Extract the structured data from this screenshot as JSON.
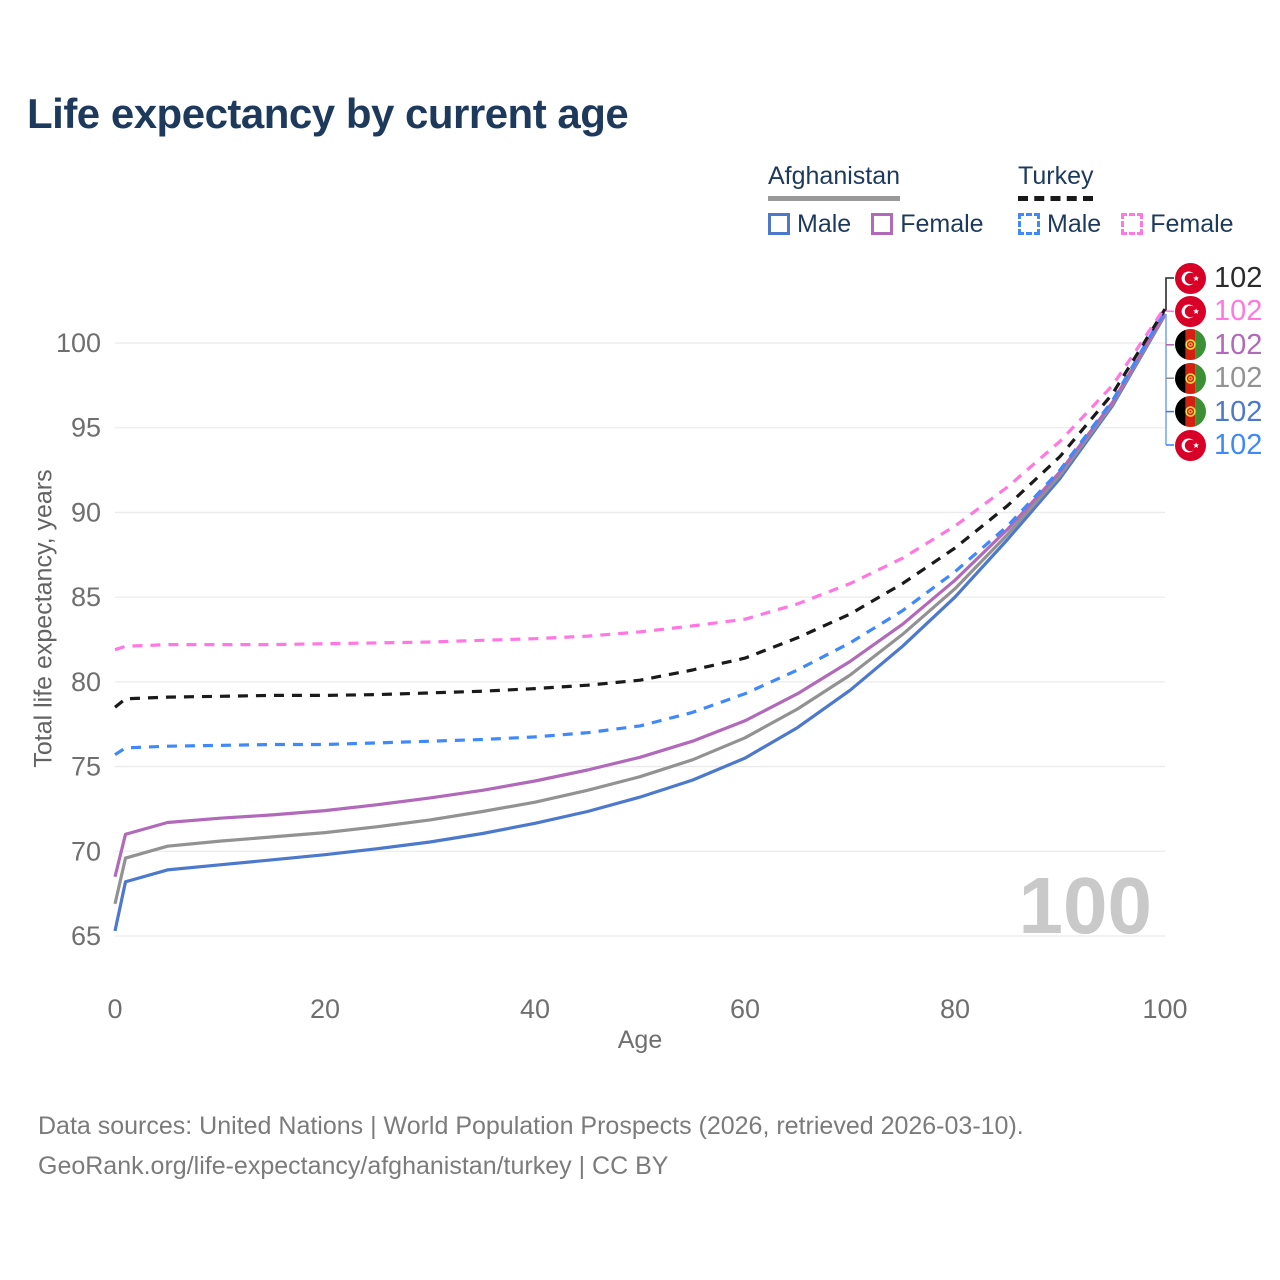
{
  "title": "Life expectancy by current age",
  "legend": {
    "groups": [
      {
        "label": "Afghanistan",
        "underline_color": "#999999",
        "underline_style": "solid",
        "items": [
          {
            "label": "Male",
            "color": "#4d79cc",
            "dash": false
          },
          {
            "label": "Female",
            "color": "#b169ba",
            "dash": false
          }
        ]
      },
      {
        "label": "Turkey",
        "underline_color": "#1a1a1a",
        "underline_style": "dashed",
        "items": [
          {
            "label": "Male",
            "color": "#4089fa",
            "dash": true
          },
          {
            "label": "Female",
            "color": "#ff78e2",
            "dash": true
          }
        ]
      }
    ]
  },
  "axes": {
    "x_label": "Age",
    "y_label": "Total life expectancy, years",
    "x_ticks": [
      0,
      20,
      40,
      60,
      80,
      100
    ],
    "y_ticks": [
      65,
      70,
      75,
      80,
      85,
      90,
      95,
      100
    ],
    "tick_color": "#6f6f6f",
    "grid_color": "#ebebeb"
  },
  "watermark": "100",
  "chart_data": {
    "type": "line",
    "title": "Life expectancy by current age",
    "xlabel": "Age",
    "ylabel": "Total life expectancy, years",
    "xlim": [
      0,
      100
    ],
    "ylim": [
      63.5,
      103
    ],
    "grid": true,
    "x": [
      0,
      1,
      5,
      10,
      15,
      20,
      25,
      30,
      35,
      40,
      45,
      50,
      55,
      60,
      65,
      70,
      75,
      80,
      85,
      90,
      95,
      100
    ],
    "series": [
      {
        "name": "Afghanistan Male",
        "country": "Afghanistan",
        "sex": "Male",
        "color": "#4d79cc",
        "dash": false,
        "values": [
          65.3,
          68.2,
          68.9,
          69.2,
          69.5,
          69.8,
          70.15,
          70.55,
          71.05,
          71.65,
          72.35,
          73.2,
          74.2,
          75.5,
          77.3,
          79.5,
          82.1,
          85.0,
          88.4,
          92.0,
          96.3,
          101.65
        ]
      },
      {
        "name": "Afghanistan Both sexes",
        "country": "Afghanistan",
        "sex": "Both",
        "color": "#929292",
        "dash": false,
        "values": [
          66.9,
          69.6,
          70.3,
          70.6,
          70.85,
          71.1,
          71.45,
          71.85,
          72.35,
          72.9,
          73.6,
          74.4,
          75.4,
          76.7,
          78.4,
          80.4,
          82.8,
          85.5,
          88.7,
          92.2,
          96.4,
          101.7
        ]
      },
      {
        "name": "Afghanistan Female",
        "country": "Afghanistan",
        "sex": "Female",
        "color": "#b169ba",
        "dash": false,
        "values": [
          68.5,
          71.0,
          71.7,
          71.95,
          72.15,
          72.4,
          72.75,
          73.15,
          73.6,
          74.15,
          74.8,
          75.55,
          76.5,
          77.7,
          79.3,
          81.2,
          83.4,
          86.0,
          89.0,
          92.4,
          96.5,
          101.75
        ]
      },
      {
        "name": "Turkey Male",
        "country": "Turkey",
        "sex": "Male",
        "color": "#4089fa",
        "dash": true,
        "values": [
          75.7,
          76.1,
          76.2,
          76.25,
          76.3,
          76.3,
          76.4,
          76.5,
          76.6,
          76.75,
          77.0,
          77.4,
          78.2,
          79.3,
          80.7,
          82.3,
          84.2,
          86.5,
          89.2,
          92.5,
          96.6,
          101.9
        ]
      },
      {
        "name": "Turkey Both sexes",
        "country": "Turkey",
        "sex": "Both",
        "color": "#1a1a1a",
        "dash": true,
        "values": [
          78.5,
          79.0,
          79.1,
          79.15,
          79.2,
          79.2,
          79.25,
          79.35,
          79.45,
          79.6,
          79.8,
          80.1,
          80.7,
          81.4,
          82.6,
          84.0,
          85.8,
          87.9,
          90.4,
          93.3,
          97.0,
          102.0
        ]
      },
      {
        "name": "Turkey Female",
        "country": "Turkey",
        "sex": "Female",
        "color": "#ff78e2",
        "dash": true,
        "values": [
          81.9,
          82.1,
          82.2,
          82.2,
          82.2,
          82.25,
          82.3,
          82.35,
          82.45,
          82.55,
          82.7,
          82.95,
          83.3,
          83.7,
          84.6,
          85.8,
          87.3,
          89.2,
          91.5,
          94.2,
          97.5,
          102.1
        ]
      }
    ],
    "legend_position": "top-right"
  },
  "annotations": [
    {
      "flag": "turkey",
      "series": "Turkey Both sexes",
      "value": "102",
      "color": "#2b2b2b"
    },
    {
      "flag": "turkey",
      "series": "Turkey Female",
      "value": "102",
      "color": "#ff78e2"
    },
    {
      "flag": "afghanistan",
      "series": "Afghanistan Female",
      "value": "102",
      "color": "#b169ba"
    },
    {
      "flag": "afghanistan",
      "series": "Afghanistan Both sexes",
      "value": "102",
      "color": "#929292"
    },
    {
      "flag": "afghanistan",
      "series": "Afghanistan Male",
      "value": "102",
      "color": "#4d79cc"
    },
    {
      "flag": "turkey",
      "series": "Turkey Male",
      "value": "102",
      "color": "#4089fa"
    }
  ],
  "footer": {
    "line1": "Data sources: United Nations | World Population Prospects (2026, retrieved 2026-03-10).",
    "line2": "GeoRank.org/life-expectancy/afghanistan/turkey | CC BY"
  },
  "colors": {
    "title": "#1d3a5c",
    "watermark": "#c9c9c9",
    "footer": "#7b7b7b",
    "turkey_flag_red": "#d80027",
    "afghan_flag": [
      "#000000",
      "#d32011",
      "#3d8f35"
    ],
    "afghan_emblem_gold": "#ffda44"
  }
}
